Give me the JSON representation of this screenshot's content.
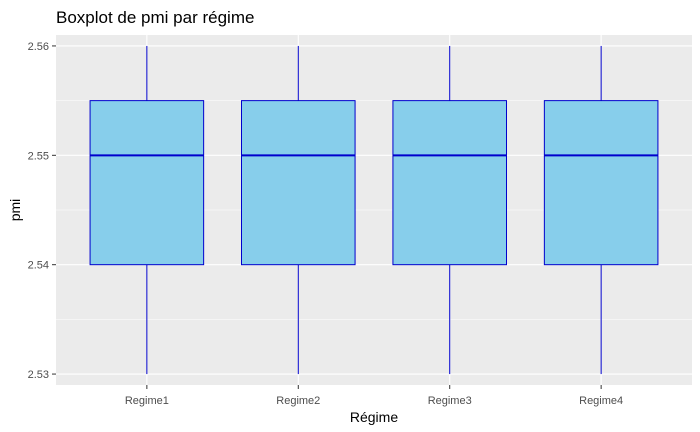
{
  "chart_data": {
    "type": "boxplot",
    "title": "Boxplot de pmi par régime",
    "xlabel": "Régime",
    "ylabel": "pmi",
    "categories": [
      "Regime1",
      "Regime2",
      "Regime3",
      "Regime4"
    ],
    "boxes": [
      {
        "category": "Regime1",
        "min": 2.53,
        "q1": 2.54,
        "median": 2.55,
        "q3": 2.555,
        "max": 2.56
      },
      {
        "category": "Regime2",
        "min": 2.53,
        "q1": 2.54,
        "median": 2.55,
        "q3": 2.555,
        "max": 2.56
      },
      {
        "category": "Regime3",
        "min": 2.53,
        "q1": 2.54,
        "median": 2.55,
        "q3": 2.555,
        "max": 2.56
      },
      {
        "category": "Regime4",
        "min": 2.53,
        "q1": 2.54,
        "median": 2.55,
        "q3": 2.555,
        "max": 2.56
      }
    ],
    "ylim": [
      2.529,
      2.561
    ],
    "yticks": [
      2.53,
      2.54,
      2.55,
      2.56
    ],
    "ytick_labels": [
      "2.53",
      "2.54",
      "2.55",
      "2.56"
    ],
    "grid": true,
    "colors": {
      "panel_background": "#ebebeb",
      "grid_major": "#ffffff",
      "box_fill": "#87ceeb",
      "box_outline": "#0000cd",
      "median_line": "#0000cd"
    }
  }
}
